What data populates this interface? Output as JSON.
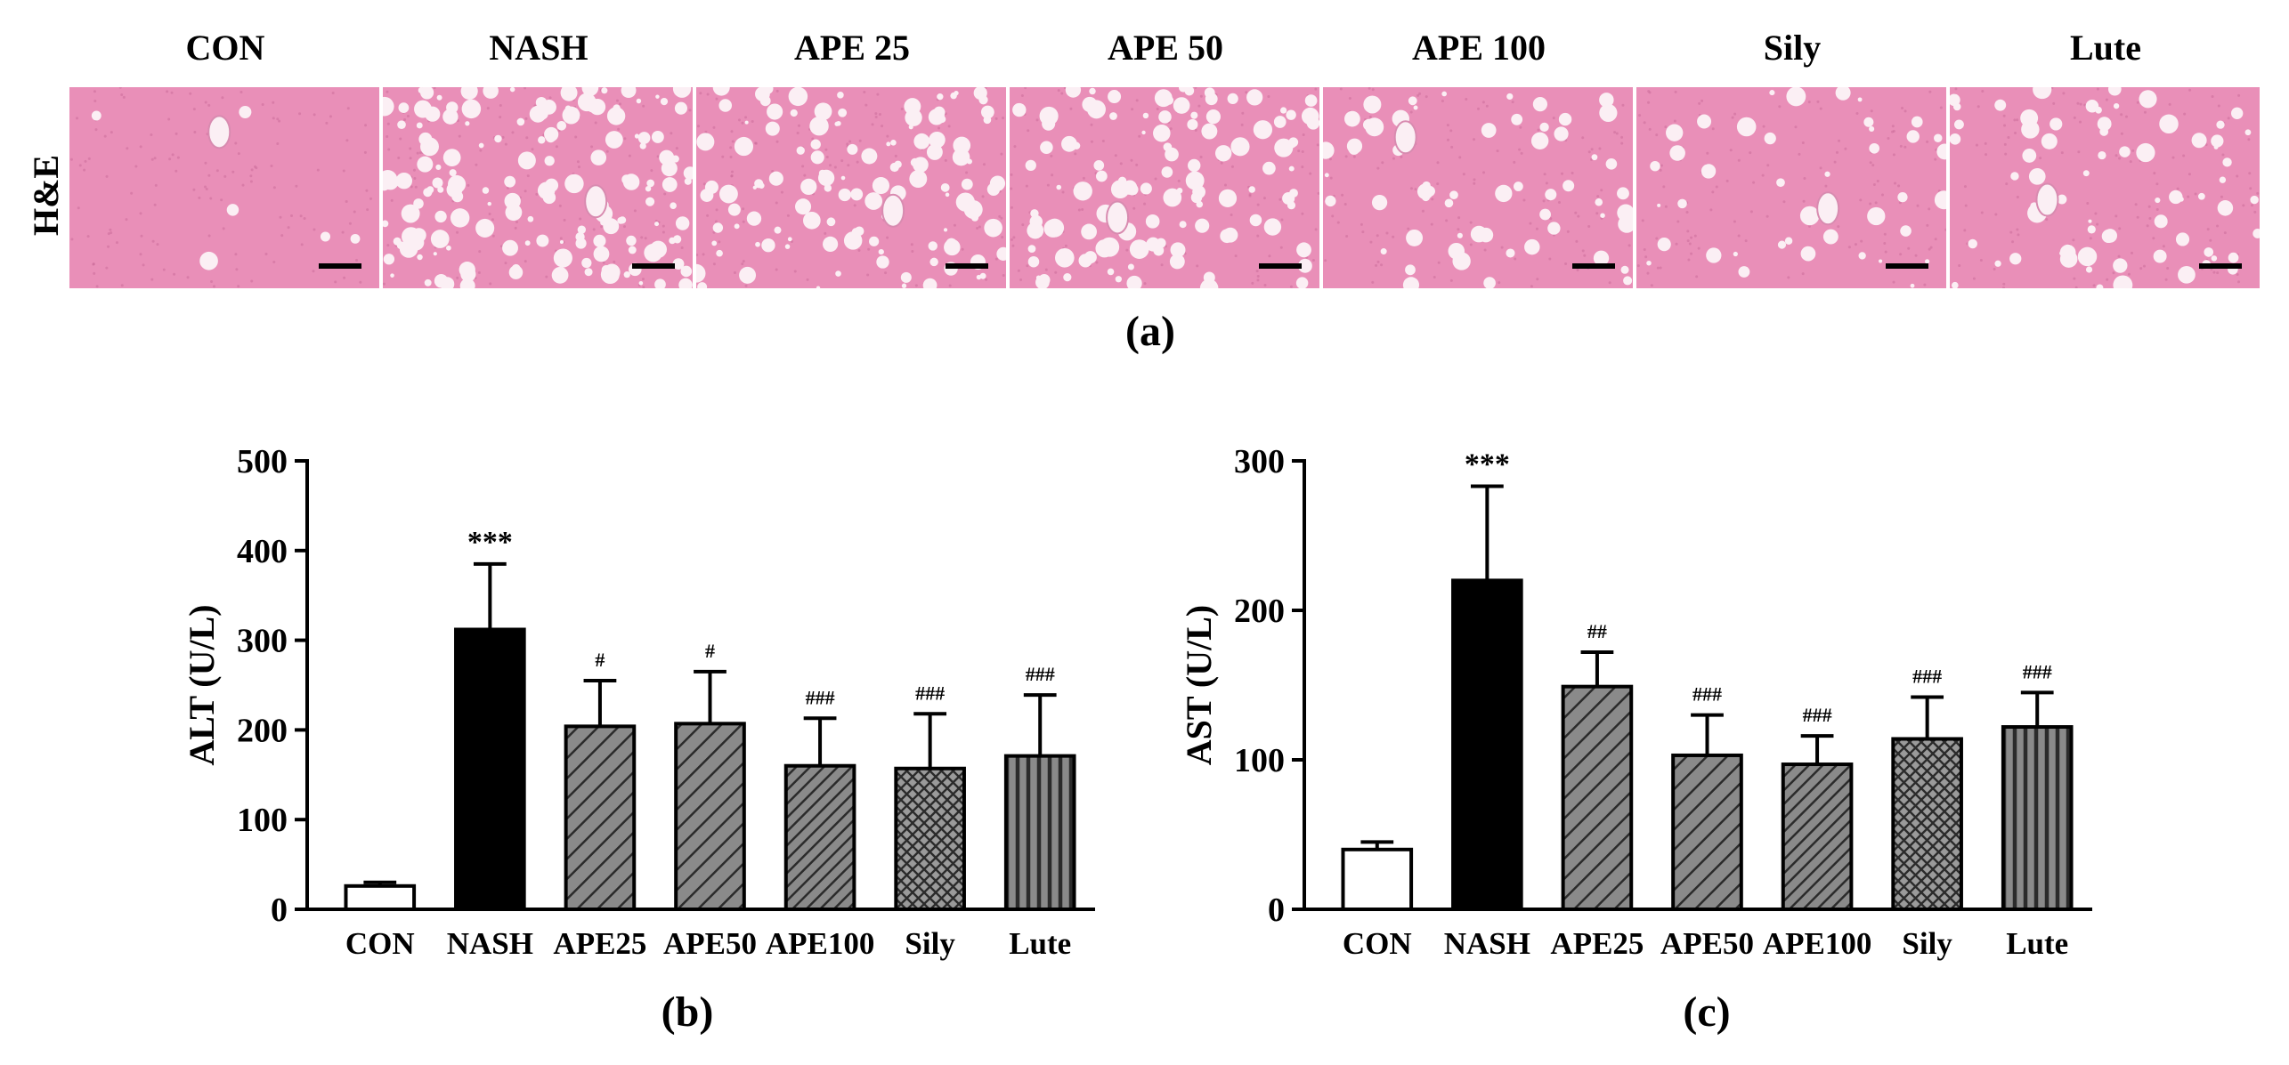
{
  "panel_a": {
    "row_label": "H&E",
    "letter": "(a)",
    "columns": [
      "CON",
      "NASH",
      "APE 25",
      "APE 50",
      "APE 100",
      "Sily",
      "Lute"
    ],
    "tissue_color": "#e98fb8",
    "vacuole_color": "#fbeff4"
  },
  "chart_data": [
    {
      "type": "bar",
      "letter": "(b)",
      "categories": [
        "CON",
        "NASH",
        "APE25",
        "APE50",
        "APE100",
        "Sily",
        "Lute"
      ],
      "values": [
        26,
        312,
        204,
        207,
        160,
        157,
        171
      ],
      "errors": [
        4,
        73,
        51,
        58,
        53,
        61,
        68
      ],
      "annotations": [
        "",
        "***",
        "#",
        "#",
        "###",
        "###",
        "###"
      ],
      "patterns": [
        "white",
        "black",
        "diag",
        "diag",
        "diag-dense",
        "crosshatch",
        "vertical"
      ],
      "ylabel": "ALT (U/L)",
      "xlabel": "",
      "ylim": [
        0,
        500
      ],
      "yticks": [
        0,
        100,
        200,
        300,
        400,
        500
      ],
      "grid": false
    },
    {
      "type": "bar",
      "letter": "(c)",
      "categories": [
        "CON",
        "NASH",
        "APE25",
        "APE50",
        "APE100",
        "Sily",
        "Lute"
      ],
      "values": [
        40,
        220,
        149,
        103,
        97,
        114,
        122
      ],
      "errors": [
        5,
        63,
        23,
        27,
        19,
        28,
        23
      ],
      "annotations": [
        "",
        "***",
        "##",
        "###",
        "###",
        "###",
        "###"
      ],
      "patterns": [
        "white",
        "black",
        "diag",
        "diag",
        "diag-dense",
        "crosshatch",
        "vertical"
      ],
      "ylabel": "AST (U/L)",
      "xlabel": "",
      "ylim": [
        0,
        300
      ],
      "yticks": [
        0,
        100,
        200,
        300
      ],
      "grid": false
    }
  ]
}
